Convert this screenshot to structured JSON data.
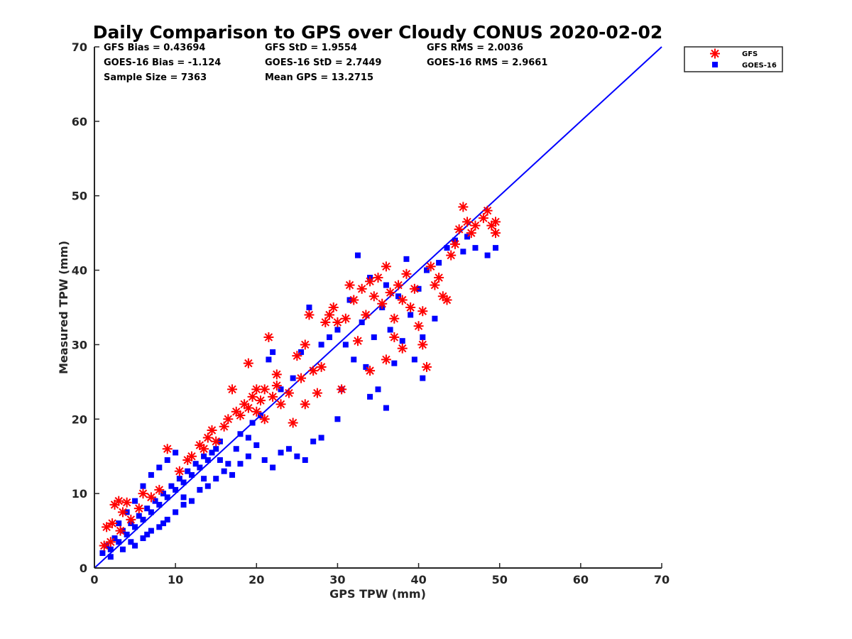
{
  "chart_data": {
    "type": "scatter",
    "title": "Daily Comparison to GPS over Cloudy CONUS 2020-02-02",
    "xlabel": "GPS TPW (mm)",
    "ylabel": "Measured TPW (mm)",
    "xlim": [
      0,
      70
    ],
    "ylim": [
      0,
      70
    ],
    "xticks": [
      0,
      10,
      20,
      30,
      40,
      50,
      60,
      70
    ],
    "yticks": [
      0,
      10,
      20,
      30,
      40,
      50,
      60,
      70
    ],
    "grid": false,
    "legend_position": "outside-top-right",
    "stats": [
      [
        "GFS Bias = 0.43694",
        "GFS StD = 1.9554",
        "GFS RMS = 2.0036"
      ],
      [
        "GOES-16 Bias = -1.124",
        "GOES-16 StD = 2.7449",
        "GOES-16 RMS = 2.9661"
      ],
      [
        "Sample Size = 7363",
        "Mean GPS = 13.2715",
        ""
      ]
    ],
    "reference_line": {
      "name": "",
      "x": [
        0,
        70
      ],
      "y": [
        0,
        70
      ],
      "color": "#0000ff"
    },
    "series": [
      {
        "name": "GFS",
        "marker": "asterisk",
        "color": "#ff0000",
        "points": [
          [
            1.5,
            5.5
          ],
          [
            2.2,
            6.0
          ],
          [
            2.5,
            8.5
          ],
          [
            3.0,
            9.0
          ],
          [
            3.5,
            7.5
          ],
          [
            4.0,
            8.8
          ],
          [
            2.0,
            3.5
          ],
          [
            1.2,
            3.0
          ],
          [
            3.2,
            5.0
          ],
          [
            4.5,
            6.5
          ],
          [
            9.0,
            16.0
          ],
          [
            12.0,
            15.0
          ],
          [
            13.0,
            16.5
          ],
          [
            14.5,
            18.5
          ],
          [
            16.0,
            19.0
          ],
          [
            16.5,
            20.0
          ],
          [
            17.0,
            24.0
          ],
          [
            17.5,
            21.0
          ],
          [
            18.0,
            20.5
          ],
          [
            18.5,
            22.0
          ],
          [
            19.0,
            21.5
          ],
          [
            19.5,
            23.0
          ],
          [
            20.0,
            21.0
          ],
          [
            20.5,
            22.5
          ],
          [
            21.0,
            24.0
          ],
          [
            21.5,
            31.0
          ],
          [
            22.0,
            23.0
          ],
          [
            22.5,
            24.5
          ],
          [
            23.0,
            22.0
          ],
          [
            21.0,
            20.0
          ],
          [
            24.0,
            23.5
          ],
          [
            24.5,
            19.5
          ],
          [
            25.0,
            28.5
          ],
          [
            26.0,
            22.0
          ],
          [
            26.5,
            34.0
          ],
          [
            27.0,
            26.5
          ],
          [
            27.5,
            23.5
          ],
          [
            28.5,
            33.0
          ],
          [
            29.0,
            34.0
          ],
          [
            29.5,
            35.0
          ],
          [
            30.5,
            24.0
          ],
          [
            31.0,
            33.5
          ],
          [
            31.5,
            38.0
          ],
          [
            32.0,
            36.0
          ],
          [
            32.5,
            30.5
          ],
          [
            33.0,
            37.5
          ],
          [
            33.5,
            34.0
          ],
          [
            34.0,
            38.5
          ],
          [
            34.5,
            36.5
          ],
          [
            35.0,
            39.0
          ],
          [
            35.5,
            35.5
          ],
          [
            36.0,
            40.5
          ],
          [
            36.5,
            37.0
          ],
          [
            37.0,
            33.5
          ],
          [
            37.5,
            38.0
          ],
          [
            38.0,
            36.0
          ],
          [
            38.5,
            39.5
          ],
          [
            39.0,
            35.0
          ],
          [
            39.5,
            37.5
          ],
          [
            40.0,
            32.5
          ],
          [
            40.5,
            34.5
          ],
          [
            41.0,
            27.0
          ],
          [
            41.5,
            40.5
          ],
          [
            42.0,
            38.0
          ],
          [
            42.5,
            39.0
          ],
          [
            43.0,
            36.5
          ],
          [
            43.5,
            36.0
          ],
          [
            44.0,
            42.0
          ],
          [
            44.5,
            43.5
          ],
          [
            45.0,
            45.5
          ],
          [
            45.5,
            48.5
          ],
          [
            46.0,
            46.5
          ],
          [
            46.5,
            45.0
          ],
          [
            47.0,
            46.0
          ],
          [
            48.0,
            47.0
          ],
          [
            48.5,
            48.0
          ],
          [
            49.0,
            46.0
          ],
          [
            49.5,
            46.5
          ],
          [
            49.5,
            45.0
          ],
          [
            36.0,
            28.0
          ],
          [
            37.0,
            31.0
          ],
          [
            38.0,
            29.5
          ],
          [
            40.5,
            30.0
          ],
          [
            34.0,
            26.5
          ],
          [
            26.0,
            30.0
          ],
          [
            28.0,
            27.0
          ],
          [
            30.0,
            33.0
          ],
          [
            22.5,
            26.0
          ],
          [
            19.0,
            27.5
          ],
          [
            25.5,
            25.5
          ],
          [
            8.0,
            10.5
          ],
          [
            10.5,
            13.0
          ],
          [
            11.5,
            14.5
          ],
          [
            13.5,
            16.0
          ],
          [
            15.0,
            17.0
          ],
          [
            7.0,
            9.5
          ],
          [
            5.5,
            8.0
          ],
          [
            6.0,
            10.0
          ],
          [
            14.0,
            17.5
          ],
          [
            20.0,
            24.0
          ]
        ]
      },
      {
        "name": "GOES-16",
        "marker": "square",
        "color": "#0000ff",
        "points": [
          [
            1.0,
            2.0
          ],
          [
            1.5,
            3.0
          ],
          [
            2.0,
            2.5
          ],
          [
            2.5,
            4.0
          ],
          [
            3.0,
            3.5
          ],
          [
            3.5,
            5.0
          ],
          [
            4.0,
            4.5
          ],
          [
            4.5,
            6.0
          ],
          [
            5.0,
            5.5
          ],
          [
            5.5,
            7.0
          ],
          [
            6.0,
            6.5
          ],
          [
            6.5,
            8.0
          ],
          [
            7.0,
            7.5
          ],
          [
            7.5,
            9.0
          ],
          [
            8.0,
            8.5
          ],
          [
            8.5,
            10.0
          ],
          [
            9.0,
            9.5
          ],
          [
            9.5,
            11.0
          ],
          [
            10.0,
            10.5
          ],
          [
            10.5,
            12.0
          ],
          [
            11.0,
            11.5
          ],
          [
            11.5,
            13.0
          ],
          [
            12.0,
            12.5
          ],
          [
            12.5,
            14.0
          ],
          [
            13.0,
            13.5
          ],
          [
            13.5,
            15.0
          ],
          [
            14.0,
            14.5
          ],
          [
            14.5,
            15.5
          ],
          [
            15.0,
            16.0
          ],
          [
            15.5,
            17.0
          ],
          [
            3.0,
            6.0
          ],
          [
            4.0,
            7.5
          ],
          [
            5.0,
            9.0
          ],
          [
            6.0,
            11.0
          ],
          [
            7.0,
            12.5
          ],
          [
            8.0,
            13.5
          ],
          [
            9.0,
            14.5
          ],
          [
            10.0,
            15.5
          ],
          [
            5.0,
            3.0
          ],
          [
            6.0,
            4.0
          ],
          [
            7.0,
            5.0
          ],
          [
            8.0,
            5.5
          ],
          [
            9.0,
            6.5
          ],
          [
            10.0,
            7.5
          ],
          [
            11.0,
            8.5
          ],
          [
            12.0,
            9.0
          ],
          [
            13.0,
            10.5
          ],
          [
            14.0,
            11.0
          ],
          [
            15.0,
            12.0
          ],
          [
            16.0,
            13.0
          ],
          [
            16.5,
            14.0
          ],
          [
            17.0,
            12.5
          ],
          [
            18.0,
            14.0
          ],
          [
            19.0,
            15.0
          ],
          [
            20.0,
            16.5
          ],
          [
            21.0,
            14.5
          ],
          [
            22.0,
            13.5
          ],
          [
            23.0,
            15.5
          ],
          [
            24.0,
            16.0
          ],
          [
            25.0,
            15.0
          ],
          [
            26.0,
            14.5
          ],
          [
            27.0,
            17.0
          ],
          [
            28.0,
            17.5
          ],
          [
            30.0,
            20.0
          ],
          [
            30.5,
            24.0
          ],
          [
            18.0,
            18.0
          ],
          [
            19.5,
            19.5
          ],
          [
            20.5,
            20.5
          ],
          [
            21.5,
            28.0
          ],
          [
            22.0,
            29.0
          ],
          [
            23.0,
            24.0
          ],
          [
            24.5,
            25.5
          ],
          [
            25.5,
            29.0
          ],
          [
            26.5,
            35.0
          ],
          [
            28.0,
            30.0
          ],
          [
            29.0,
            31.0
          ],
          [
            30.0,
            32.0
          ],
          [
            31.0,
            30.0
          ],
          [
            31.5,
            36.0
          ],
          [
            32.0,
            28.0
          ],
          [
            32.5,
            42.0
          ],
          [
            33.0,
            33.0
          ],
          [
            33.5,
            27.0
          ],
          [
            34.0,
            39.0
          ],
          [
            34.5,
            31.0
          ],
          [
            35.0,
            24.0
          ],
          [
            35.5,
            35.0
          ],
          [
            36.0,
            21.5
          ],
          [
            36.5,
            32.0
          ],
          [
            37.0,
            27.5
          ],
          [
            37.5,
            36.5
          ],
          [
            38.0,
            30.5
          ],
          [
            38.5,
            41.5
          ],
          [
            39.0,
            34.0
          ],
          [
            39.5,
            28.0
          ],
          [
            40.0,
            37.5
          ],
          [
            40.5,
            25.5
          ],
          [
            41.0,
            40.0
          ],
          [
            42.5,
            41.0
          ],
          [
            43.5,
            43.0
          ],
          [
            44.5,
            44.0
          ],
          [
            45.5,
            42.5
          ],
          [
            46.0,
            44.5
          ],
          [
            47.0,
            43.0
          ],
          [
            48.5,
            42.0
          ],
          [
            49.5,
            43.0
          ],
          [
            40.5,
            31.0
          ],
          [
            42.0,
            33.5
          ],
          [
            34.0,
            23.0
          ],
          [
            36.0,
            38.0
          ],
          [
            2.0,
            1.5
          ],
          [
            3.5,
            2.5
          ],
          [
            4.5,
            3.5
          ],
          [
            6.5,
            4.5
          ],
          [
            8.5,
            6.0
          ],
          [
            11.0,
            9.5
          ],
          [
            13.5,
            12.0
          ],
          [
            15.5,
            14.5
          ],
          [
            17.5,
            16.0
          ],
          [
            19.0,
            17.5
          ]
        ]
      }
    ]
  }
}
